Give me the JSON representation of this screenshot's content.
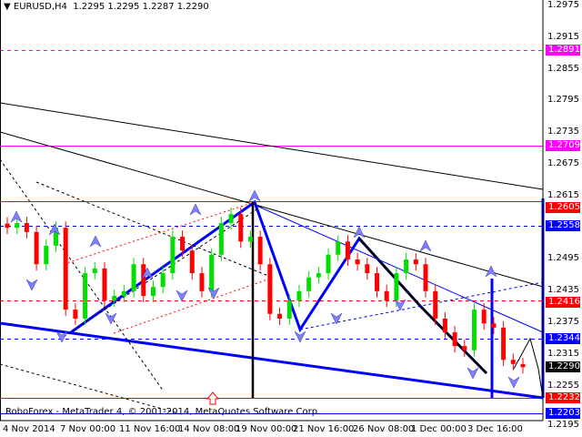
{
  "header": {
    "symbol": "EURUSD,H4",
    "ohlc": "1.2295 1.2295 1.2287 1.2290",
    "menu_icon": "triangle-down-icon"
  },
  "footer": {
    "copyright": "RoboForex - MetaTrader 4, © 2001-2014, MetaQuotes Software Corp."
  },
  "chart_data": {
    "type": "candlestick",
    "symbol": "EURUSD",
    "timeframe": "H4",
    "x_tick_labels": [
      "4 Nov 2014",
      "7 Nov 00:00",
      "11 Nov 16:00",
      "14 Nov 08:00",
      "19 Nov 00:00",
      "21 Nov 16:00",
      "26 Nov 08:00",
      "1 Dec 00:00",
      "3 Dec 16:00"
    ],
    "y_tick_labels": [
      "1.2975",
      "1.2915",
      "1.2855",
      "1.2795",
      "1.2735",
      "1.2675",
      "1.2615",
      "1.2495",
      "1.2435",
      "1.2375",
      "1.2315",
      "1.2255",
      "1.2195"
    ],
    "ylim": [
      1.219,
      1.2985
    ],
    "closes_approx": [
      1.2554,
      1.2563,
      1.2546,
      1.2485,
      1.252,
      1.2554,
      1.2399,
      1.2382,
      1.2468,
      1.2477,
      1.2416,
      1.2425,
      1.2434,
      1.2485,
      1.2425,
      1.2442,
      1.2468,
      1.2537,
      1.2511,
      1.2468,
      1.2434,
      1.2503,
      1.2563,
      1.258,
      1.2528,
      1.2537,
      1.2485,
      1.2391,
      1.2382,
      1.2416,
      1.2434,
      1.246,
      1.2468,
      1.2503,
      1.2528,
      1.2494,
      1.2485,
      1.2468,
      1.2434,
      1.2416,
      1.2468,
      1.2494,
      1.2485,
      1.2434,
      1.2382,
      1.2356,
      1.233,
      1.2322,
      1.2399,
      1.2373,
      1.2365,
      1.2304,
      1.2296,
      1.229
    ],
    "bull_color": "#00e000",
    "bear_color": "#ff0000",
    "price_levels": [
      {
        "value": "1.2891",
        "color": "#ff00ff",
        "style": "dashed"
      },
      {
        "value": "1.2709",
        "color": "#ff00ff",
        "style": "solid"
      },
      {
        "value": "1.2605",
        "color": "#ff0000",
        "style": "solid"
      },
      {
        "value": "1.2558",
        "color": "#0000ff",
        "style": "dashed"
      },
      {
        "value": "1.2416",
        "color": "#ff0000",
        "style": "dashed"
      },
      {
        "value": "1.2344",
        "color": "#0000ff",
        "style": "dashed"
      },
      {
        "value": "1.2290",
        "color": "#000000",
        "style": "current"
      },
      {
        "value": "1.2232",
        "color": "#ff0000",
        "style": "solid"
      },
      {
        "value": "1.2203",
        "color": "#0000ff",
        "style": "solid"
      }
    ]
  }
}
